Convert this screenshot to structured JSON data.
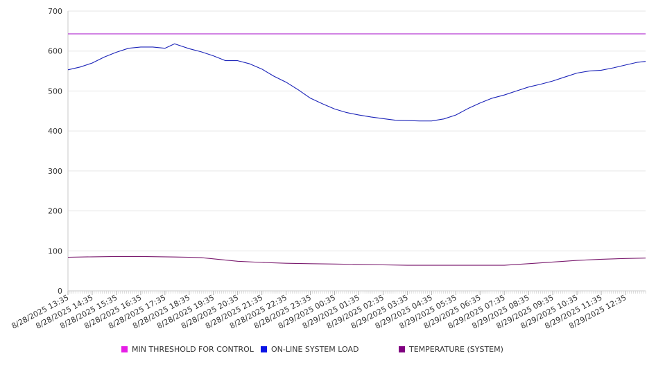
{
  "chart_data": {
    "type": "line",
    "title": "",
    "xlabel": "",
    "ylabel": "",
    "ylim": [
      0,
      700
    ],
    "y_ticks": [
      0,
      100,
      200,
      300,
      400,
      500,
      600,
      700
    ],
    "grid": "horizontal",
    "legend_position": "bottom",
    "x_tick_labels": [
      "8/28/2025 13:35",
      "8/28/2025 14:35",
      "8/28/2025 15:35",
      "8/28/2025 16:35",
      "8/28/2025 17:35",
      "8/28/2025 18:35",
      "8/28/2025 19:35",
      "8/28/2025 20:35",
      "8/28/2025 21:35",
      "8/28/2025 22:35",
      "8/28/2025 23:35",
      "8/29/2025 00:35",
      "8/29/2025 01:35",
      "8/29/2025 02:35",
      "8/29/2025 03:35",
      "8/29/2025 04:35",
      "8/29/2025 05:35",
      "8/29/2025 06:35",
      "8/29/2025 07:35",
      "8/29/2025 08:35",
      "8/29/2025 09:35",
      "8/29/2025 10:35",
      "8/29/2025 11:35",
      "8/29/2025 12:35"
    ],
    "x_range": [
      "8/28/2025 13:35",
      "8/29/2025 13:25"
    ],
    "series": [
      {
        "name": "MIN THRESHOLD FOR CONTROL",
        "legend_color": "#e61ee6",
        "line_color": "#b22fd0",
        "hours": [
          0,
          23.83
        ],
        "values": [
          643,
          643
        ]
      },
      {
        "name": "ON-LINE SYSTEM LOAD",
        "legend_color": "#0a14e6",
        "line_color": "#1a22b8",
        "hours": [
          0,
          0.5,
          1,
          1.5,
          2,
          2.5,
          3,
          3.5,
          4,
          4.4,
          4.6,
          5,
          5.5,
          6,
          6.5,
          7,
          7.5,
          8,
          8.5,
          9,
          9.5,
          10,
          10.5,
          11,
          11.5,
          12,
          12.5,
          13,
          13.5,
          14,
          14.5,
          15,
          15.5,
          16,
          16.5,
          17,
          17.5,
          18,
          18.5,
          19,
          19.5,
          20,
          20.5,
          21,
          21.5,
          22,
          22.5,
          23,
          23.5,
          23.83
        ],
        "values": [
          553,
          560,
          570,
          585,
          597,
          607,
          610,
          610,
          607,
          618,
          614,
          606,
          598,
          588,
          576,
          576,
          568,
          555,
          537,
          522,
          503,
          482,
          468,
          455,
          446,
          440,
          435,
          431,
          427,
          426,
          425,
          425,
          430,
          440,
          456,
          470,
          482,
          490,
          500,
          510,
          517,
          525,
          535,
          545,
          550,
          552,
          558,
          565,
          572,
          574
        ]
      },
      {
        "name": "TEMPERATURE (SYSTEM)",
        "legend_color": "#800080",
        "line_color": "#7a1a6e",
        "hours": [
          0,
          1,
          2,
          3,
          4,
          5,
          5.5,
          6,
          6.5,
          7,
          8,
          9,
          10,
          11,
          12,
          13,
          14,
          15,
          16,
          17,
          18,
          18.5,
          19,
          20,
          21,
          22,
          23,
          23.83
        ],
        "values": [
          84,
          85,
          86,
          86,
          85,
          84,
          83,
          80,
          77,
          74,
          71,
          69,
          68,
          67,
          66,
          65,
          64,
          64,
          64,
          64,
          64,
          66,
          68,
          72,
          76,
          79,
          81,
          82
        ]
      }
    ]
  }
}
